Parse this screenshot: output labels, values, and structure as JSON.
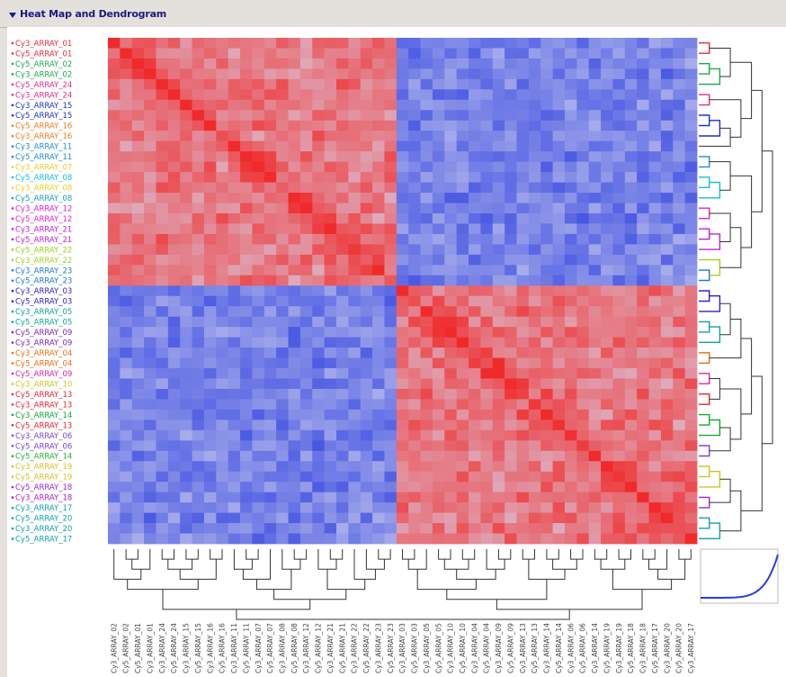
{
  "panel": {
    "title": "Heat Map and Dendrogram",
    "collapse_icon": "triangle-down-icon"
  },
  "chart_data": {
    "type": "heatmap",
    "title": "",
    "xlabel": "",
    "ylabel": "",
    "colorscale": {
      "low": "#2a3de0",
      "mid": "#d8d8ee",
      "high": "#f02a2a"
    },
    "value_range": [
      -1,
      1
    ],
    "row_labels": [
      "Cy3_ARRAY_01",
      "Cy5_ARRAY_01",
      "Cy5_ARRAY_02",
      "Cy3_ARRAY_02",
      "Cy5_ARRAY_24",
      "Cy3_ARRAY_24",
      "Cy3_ARRAY_15",
      "Cy5_ARRAY_15",
      "Cy5_ARRAY_16",
      "Cy3_ARRAY_16",
      "Cy3_ARRAY_11",
      "Cy5_ARRAY_11",
      "Cy3_ARRAY_07",
      "Cy5_ARRAY_08",
      "Cy3_ARRAY_08",
      "Cy5_ARRAY_08",
      "Cy3_ARRAY_12",
      "Cy5_ARRAY_12",
      "Cy3_ARRAY_21",
      "Cy5_ARRAY_21",
      "Cy5_ARRAY_22",
      "Cy3_ARRAY_22",
      "Cy3_ARRAY_23",
      "Cy5_ARRAY_23",
      "Cy3_ARRAY_03",
      "Cy5_ARRAY_03",
      "Cy3_ARRAY_05",
      "Cy5_ARRAY_05",
      "Cy5_ARRAY_09",
      "Cy3_ARRAY_09",
      "Cy3_ARRAY_04",
      "Cy5_ARRAY_04",
      "Cy5_ARRAY_09",
      "Cy3_ARRAY_10",
      "Cy5_ARRAY_13",
      "Cy3_ARRAY_13",
      "Cy3_ARRAY_14",
      "Cy5_ARRAY_13",
      "Cy3_ARRAY_06",
      "Cy5_ARRAY_06",
      "Cy5_ARRAY_14",
      "Cy3_ARRAY_19",
      "Cy5_ARRAY_19",
      "Cy5_ARRAY_18",
      "Cy3_ARRAY_18",
      "Cy3_ARRAY_17",
      "Cy5_ARRAY_20",
      "Cy3_ARRAY_20",
      "Cy5_ARRAY_17"
    ],
    "row_label_colors": [
      "#e8283a",
      "#e8283a",
      "#1aa84a",
      "#1aa84a",
      "#e02a90",
      "#e02a90",
      "#1a30c8",
      "#1a30c8",
      "#ee7a20",
      "#ee7a20",
      "#1a8ad0",
      "#1a8ad0",
      "#e8d020",
      "#10c0d0",
      "#e8d020",
      "#10a0c0",
      "#e020c0",
      "#e020c0",
      "#c020d8",
      "#c020d8",
      "#a0d020",
      "#a0d020",
      "#1a7ad0",
      "#1a7ad0",
      "#3020c0",
      "#3020c0",
      "#10a0a0",
      "#10a0a0",
      "#8020c0",
      "#8020c0",
      "#ee6a10",
      "#ee6a10",
      "#e020a0",
      "#c8c820",
      "#e82030",
      "#e82030",
      "#10a830",
      "#e82030",
      "#8040d0",
      "#8040d0",
      "#20b030",
      "#d8c020",
      "#d8c020",
      "#a020d0",
      "#a020d0",
      "#10a0b0",
      "#10a0b0",
      "#10a0b0",
      "#10a0b0"
    ],
    "col_labels": [
      "Cy3_ARRAY_02",
      "Cy5_ARRAY_02",
      "Cy5_ARRAY_01",
      "Cy3_ARRAY_01",
      "Cy3_ARRAY_24",
      "Cy5_ARRAY_24",
      "Cy3_ARRAY_15",
      "Cy5_ARRAY_15",
      "Cy3_ARRAY_16",
      "Cy5_ARRAY_16",
      "Cy3_ARRAY_11",
      "Cy5_ARRAY_11",
      "Cy3_ARRAY_07",
      "Cy5_ARRAY_07",
      "Cy3_ARRAY_08",
      "Cy5_ARRAY_08",
      "Cy3_ARRAY_12",
      "Cy5_ARRAY_12",
      "Cy3_ARRAY_21",
      "Cy5_ARRAY_21",
      "Cy3_ARRAY_22",
      "Cy5_ARRAY_22",
      "Cy3_ARRAY_23",
      "Cy5_ARRAY_23",
      "Cy3_ARRAY_03",
      "Cy5_ARRAY_03",
      "Cy3_ARRAY_05",
      "Cy5_ARRAY_05",
      "Cy3_ARRAY_10",
      "Cy5_ARRAY_10",
      "Cy3_ARRAY_04",
      "Cy5_ARRAY_04",
      "Cy3_ARRAY_09",
      "Cy5_ARRAY_09",
      "Cy3_ARRAY_13",
      "Cy5_ARRAY_13",
      "Cy3_ARRAY_14",
      "Cy5_ARRAY_14",
      "Cy3_ARRAY_06",
      "Cy5_ARRAY_06",
      "Cy3_ARRAY_14",
      "Cy5_ARRAY_19",
      "Cy3_ARRAY_19",
      "Cy5_ARRAY_18",
      "Cy3_ARRAY_18",
      "Cy5_ARRAY_17",
      "Cy3_ARRAY_20",
      "Cy5_ARRAY_20",
      "Cy3_ARRAY_17"
    ],
    "block_structure": {
      "cluster_boundary_index": 24,
      "within_cluster_correlation": 0.55,
      "between_cluster_correlation": -0.55,
      "diagonal_correlation": 1.0,
      "secondary_block": {
        "start": 41,
        "end": 49,
        "correlation": 0.6
      }
    },
    "grid": false,
    "legend": "none",
    "dendrogram_row": "right",
    "dendrogram_col": "bottom",
    "distribution_inset": "bottom-right"
  }
}
